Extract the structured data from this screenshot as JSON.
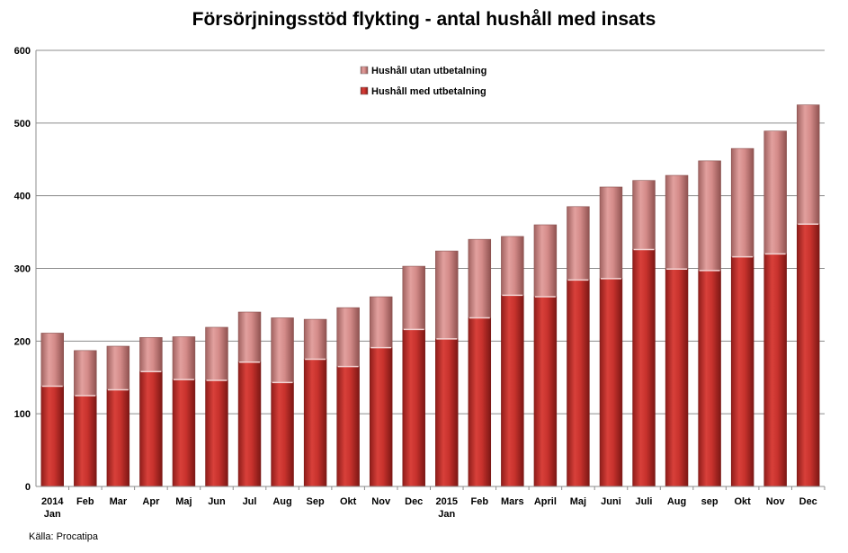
{
  "chart_data": {
    "type": "bar",
    "stacked": true,
    "title": "Försörjningsstöd flykting - antal hushåll med insats",
    "xlabel": "",
    "ylabel": "",
    "ylim": [
      0,
      600
    ],
    "yticks": [
      0,
      100,
      200,
      300,
      400,
      500,
      600
    ],
    "grid": true,
    "legend_position": "top-center",
    "categories": [
      [
        "2014",
        "Jan"
      ],
      [
        "Feb"
      ],
      [
        "Mar"
      ],
      [
        "Apr"
      ],
      [
        "Maj"
      ],
      [
        "Jun"
      ],
      [
        "Jul"
      ],
      [
        "Aug"
      ],
      [
        "Sep"
      ],
      [
        "Okt"
      ],
      [
        "Nov"
      ],
      [
        "Dec"
      ],
      [
        "2015",
        "Jan"
      ],
      [
        "Feb"
      ],
      [
        "Mars"
      ],
      [
        "April"
      ],
      [
        "Maj"
      ],
      [
        "Juni"
      ],
      [
        "Juli"
      ],
      [
        "Aug"
      ],
      [
        "sep"
      ],
      [
        "Okt"
      ],
      [
        "Nov"
      ],
      [
        "Dec"
      ]
    ],
    "series": [
      {
        "name": "Hushåll med utbetalning",
        "color": "#c0312b",
        "values": [
          138,
          125,
          133,
          158,
          147,
          146,
          171,
          143,
          175,
          165,
          191,
          216,
          203,
          232,
          263,
          261,
          284,
          286,
          326,
          299,
          297,
          316,
          320,
          361
        ]
      },
      {
        "name": "Hushåll utan utbetalning",
        "color": "#d98583",
        "values": [
          73,
          62,
          60,
          47,
          59,
          73,
          69,
          89,
          55,
          81,
          70,
          87,
          121,
          108,
          81,
          99,
          101,
          126,
          95,
          129,
          151,
          149,
          169,
          164
        ]
      }
    ]
  },
  "source_note": "Källa: Procatipa"
}
